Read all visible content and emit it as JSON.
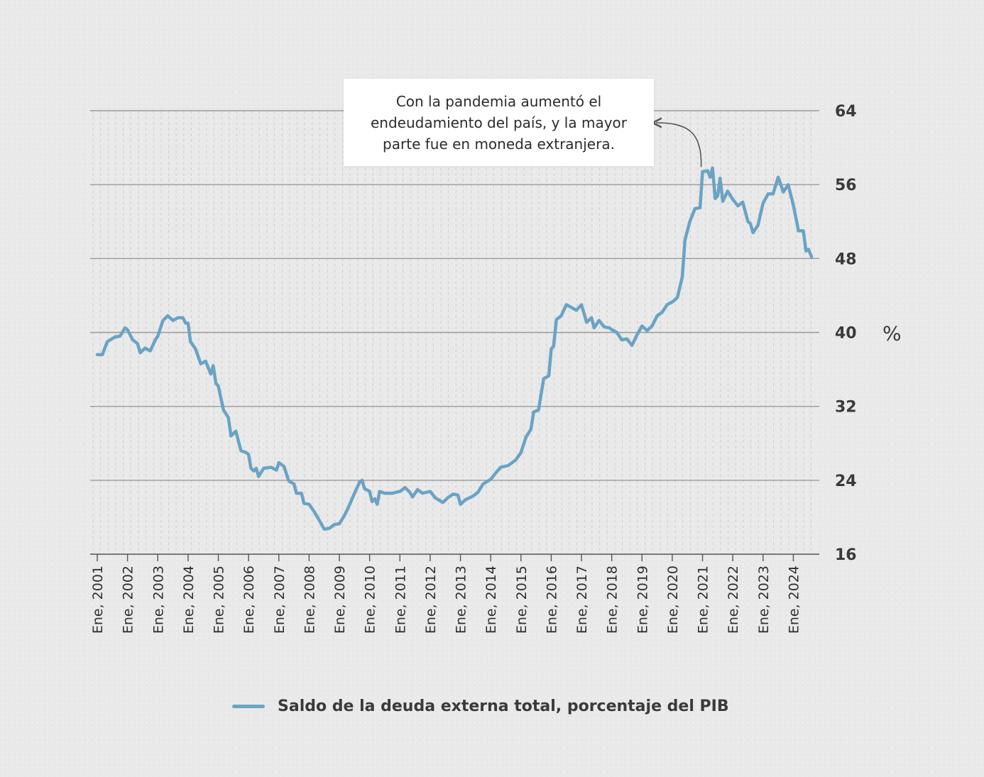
{
  "chart_data": {
    "type": "line",
    "title": "",
    "xlabel": "",
    "ylabel": "%",
    "ylim": [
      16,
      64
    ],
    "yticks": [
      16,
      24,
      32,
      40,
      48,
      56,
      64
    ],
    "xlim": [
      2001.0,
      2024.6
    ],
    "xticks": [
      {
        "x": 2001,
        "label": "Ene, 2001"
      },
      {
        "x": 2002,
        "label": "Ene, 2002"
      },
      {
        "x": 2003,
        "label": "Ene, 2003"
      },
      {
        "x": 2004,
        "label": "Ene, 2004"
      },
      {
        "x": 2005,
        "label": "Ene, 2005"
      },
      {
        "x": 2006,
        "label": "Ene, 2006"
      },
      {
        "x": 2007,
        "label": "Ene, 2007"
      },
      {
        "x": 2008,
        "label": "Ene, 2008"
      },
      {
        "x": 2009,
        "label": "Ene, 2009"
      },
      {
        "x": 2010,
        "label": "Ene, 2010"
      },
      {
        "x": 2011,
        "label": "Ene, 2011"
      },
      {
        "x": 2012,
        "label": "Ene, 2012"
      },
      {
        "x": 2013,
        "label": "Ene, 2013"
      },
      {
        "x": 2014,
        "label": "Ene, 2014"
      },
      {
        "x": 2015,
        "label": "Ene, 2015"
      },
      {
        "x": 2016,
        "label": "Ene, 2016"
      },
      {
        "x": 2017,
        "label": "Ene, 2017"
      },
      {
        "x": 2018,
        "label": "Ene, 2018"
      },
      {
        "x": 2019,
        "label": "Ene, 2019"
      },
      {
        "x": 2020,
        "label": "Ene, 2020"
      },
      {
        "x": 2021,
        "label": "Ene, 2021"
      },
      {
        "x": 2022,
        "label": "Ene, 2022"
      },
      {
        "x": 2023,
        "label": "Ene, 2023"
      },
      {
        "x": 2024,
        "label": "Ene, 2024"
      }
    ],
    "grid": true,
    "legend_placement": "bottom",
    "series": [
      {
        "name": "Saldo de la deuda externa total, porcentaje del PIB",
        "color": "#6aa3c4",
        "points": [
          [
            2001.0,
            37.6
          ],
          [
            2001.17,
            37.6
          ],
          [
            2001.33,
            39.0
          ],
          [
            2001.58,
            39.5
          ],
          [
            2001.75,
            39.6
          ],
          [
            2001.92,
            40.5
          ],
          [
            2002.0,
            40.3
          ],
          [
            2002.17,
            39.2
          ],
          [
            2002.33,
            38.8
          ],
          [
            2002.42,
            37.8
          ],
          [
            2002.58,
            38.3
          ],
          [
            2002.75,
            38.0
          ],
          [
            2002.92,
            39.2
          ],
          [
            2003.0,
            39.6
          ],
          [
            2003.17,
            41.3
          ],
          [
            2003.33,
            41.8
          ],
          [
            2003.5,
            41.3
          ],
          [
            2003.67,
            41.6
          ],
          [
            2003.83,
            41.6
          ],
          [
            2003.92,
            41.0
          ],
          [
            2004.0,
            41.0
          ],
          [
            2004.08,
            39.0
          ],
          [
            2004.25,
            38.2
          ],
          [
            2004.42,
            36.6
          ],
          [
            2004.58,
            36.9
          ],
          [
            2004.75,
            35.5
          ],
          [
            2004.83,
            36.4
          ],
          [
            2004.92,
            34.5
          ],
          [
            2005.0,
            34.2
          ],
          [
            2005.17,
            31.6
          ],
          [
            2005.33,
            30.8
          ],
          [
            2005.42,
            28.8
          ],
          [
            2005.58,
            29.3
          ],
          [
            2005.75,
            27.2
          ],
          [
            2005.92,
            27.0
          ],
          [
            2006.0,
            26.8
          ],
          [
            2006.08,
            25.3
          ],
          [
            2006.17,
            25.0
          ],
          [
            2006.25,
            25.3
          ],
          [
            2006.33,
            24.4
          ],
          [
            2006.5,
            25.3
          ],
          [
            2006.75,
            25.4
          ],
          [
            2006.92,
            25.1
          ],
          [
            2007.0,
            25.9
          ],
          [
            2007.17,
            25.5
          ],
          [
            2007.33,
            23.9
          ],
          [
            2007.5,
            23.6
          ],
          [
            2007.58,
            22.6
          ],
          [
            2007.75,
            22.6
          ],
          [
            2007.83,
            21.5
          ],
          [
            2008.0,
            21.4
          ],
          [
            2008.17,
            20.6
          ],
          [
            2008.33,
            19.7
          ],
          [
            2008.5,
            18.7
          ],
          [
            2008.67,
            18.8
          ],
          [
            2008.83,
            19.2
          ],
          [
            2009.0,
            19.3
          ],
          [
            2009.17,
            20.2
          ],
          [
            2009.33,
            21.3
          ],
          [
            2009.5,
            22.6
          ],
          [
            2009.67,
            23.8
          ],
          [
            2009.75,
            24.0
          ],
          [
            2009.83,
            23.1
          ],
          [
            2010.0,
            22.8
          ],
          [
            2010.08,
            21.7
          ],
          [
            2010.17,
            22.0
          ],
          [
            2010.25,
            21.4
          ],
          [
            2010.33,
            22.8
          ],
          [
            2010.5,
            22.6
          ],
          [
            2010.75,
            22.6
          ],
          [
            2011.0,
            22.8
          ],
          [
            2011.17,
            23.2
          ],
          [
            2011.33,
            22.7
          ],
          [
            2011.42,
            22.2
          ],
          [
            2011.58,
            23.0
          ],
          [
            2011.75,
            22.6
          ],
          [
            2012.0,
            22.8
          ],
          [
            2012.17,
            22.1
          ],
          [
            2012.42,
            21.6
          ],
          [
            2012.58,
            22.1
          ],
          [
            2012.75,
            22.5
          ],
          [
            2012.92,
            22.4
          ],
          [
            2013.0,
            21.4
          ],
          [
            2013.17,
            21.9
          ],
          [
            2013.42,
            22.3
          ],
          [
            2013.58,
            22.7
          ],
          [
            2013.75,
            23.6
          ],
          [
            2014.0,
            24.1
          ],
          [
            2014.17,
            24.8
          ],
          [
            2014.33,
            25.4
          ],
          [
            2014.58,
            25.6
          ],
          [
            2014.83,
            26.2
          ],
          [
            2015.0,
            27.0
          ],
          [
            2015.17,
            28.7
          ],
          [
            2015.33,
            29.5
          ],
          [
            2015.42,
            31.4
          ],
          [
            2015.58,
            31.6
          ],
          [
            2015.75,
            35.0
          ],
          [
            2015.92,
            35.3
          ],
          [
            2016.0,
            38.2
          ],
          [
            2016.08,
            38.5
          ],
          [
            2016.17,
            41.4
          ],
          [
            2016.33,
            41.8
          ],
          [
            2016.5,
            43.0
          ],
          [
            2016.67,
            42.7
          ],
          [
            2016.83,
            42.4
          ],
          [
            2017.0,
            43.0
          ],
          [
            2017.17,
            41.1
          ],
          [
            2017.33,
            41.6
          ],
          [
            2017.42,
            40.5
          ],
          [
            2017.58,
            41.3
          ],
          [
            2017.75,
            40.6
          ],
          [
            2017.92,
            40.5
          ],
          [
            2018.0,
            40.3
          ],
          [
            2018.17,
            40.0
          ],
          [
            2018.33,
            39.2
          ],
          [
            2018.5,
            39.3
          ],
          [
            2018.67,
            38.6
          ],
          [
            2018.83,
            39.7
          ],
          [
            2019.0,
            40.7
          ],
          [
            2019.17,
            40.2
          ],
          [
            2019.33,
            40.7
          ],
          [
            2019.5,
            41.8
          ],
          [
            2019.67,
            42.2
          ],
          [
            2019.83,
            43.0
          ],
          [
            2020.0,
            43.3
          ],
          [
            2020.08,
            43.5
          ],
          [
            2020.17,
            43.8
          ],
          [
            2020.33,
            46.0
          ],
          [
            2020.42,
            50.0
          ],
          [
            2020.58,
            52.0
          ],
          [
            2020.75,
            53.4
          ],
          [
            2020.92,
            53.5
          ],
          [
            2021.0,
            57.4
          ],
          [
            2021.17,
            57.5
          ],
          [
            2021.25,
            56.8
          ],
          [
            2021.33,
            57.8
          ],
          [
            2021.42,
            54.5
          ],
          [
            2021.5,
            54.8
          ],
          [
            2021.58,
            56.7
          ],
          [
            2021.67,
            54.2
          ],
          [
            2021.83,
            55.3
          ],
          [
            2022.0,
            54.4
          ],
          [
            2022.17,
            53.7
          ],
          [
            2022.33,
            54.1
          ],
          [
            2022.5,
            52.0
          ],
          [
            2022.58,
            51.8
          ],
          [
            2022.67,
            50.8
          ],
          [
            2022.83,
            51.6
          ],
          [
            2023.0,
            54.0
          ],
          [
            2023.17,
            55.0
          ],
          [
            2023.33,
            55.0
          ],
          [
            2023.5,
            56.8
          ],
          [
            2023.67,
            55.2
          ],
          [
            2023.83,
            56.0
          ],
          [
            2024.0,
            53.8
          ],
          [
            2024.17,
            51.0
          ],
          [
            2024.33,
            51.0
          ],
          [
            2024.42,
            48.8
          ],
          [
            2024.5,
            49.0
          ],
          [
            2024.6,
            48.2
          ]
        ]
      }
    ],
    "annotations": [
      {
        "text": "Con la pandemia aumentó el endeudamiento del país, y la mayor parte fue en moneda extranjera.",
        "points_to_x": 2021.0
      }
    ]
  },
  "callout": {
    "text": "Con la pandemia aumentó el endeudamiento del país, y la mayor parte fue en moneda extranjera."
  },
  "legend": {
    "label": "Saldo de la deuda externa total, porcentaje del PIB",
    "color": "#6aa3c4"
  },
  "y_unit": "%"
}
